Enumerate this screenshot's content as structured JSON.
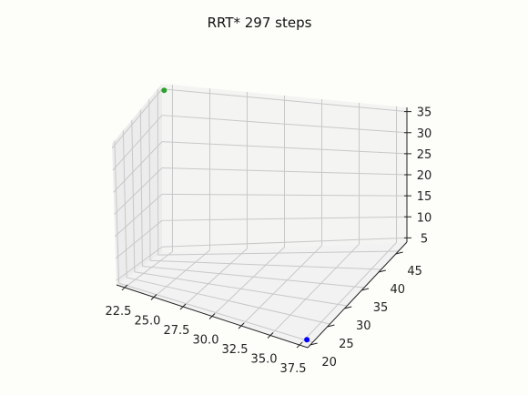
{
  "chart_data": {
    "type": "scatter",
    "projection": "3d",
    "title": "RRT* 297 steps",
    "xlabel": "",
    "ylabel": "",
    "zlabel": "",
    "xlim": [
      21.8,
      38.2
    ],
    "ylim": [
      18.5,
      47.5
    ],
    "zlim": [
      4.0,
      36.0
    ],
    "x_ticks": [
      "22.5",
      "25.0",
      "27.5",
      "30.0",
      "32.5",
      "35.0",
      "37.5"
    ],
    "y_ticks": [
      "20",
      "25",
      "30",
      "35",
      "40",
      "45"
    ],
    "z_ticks": [
      "5",
      "10",
      "15",
      "20",
      "25",
      "30",
      "35"
    ],
    "grid": true,
    "series": [
      {
        "marker": "circle",
        "points": [
          {
            "x": 22.0,
            "y": 47.0,
            "z": 35.0,
            "color": "#2ca02c"
          },
          {
            "x": 38.0,
            "y": 19.0,
            "z": 5.0,
            "color": "#0000ff"
          }
        ]
      }
    ]
  }
}
